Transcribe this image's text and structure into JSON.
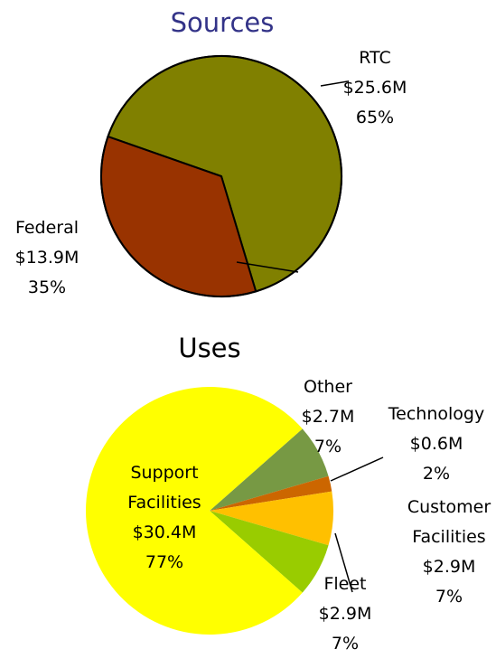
{
  "chart_data": [
    {
      "type": "pie",
      "title": "Sources",
      "categories": [
        "RTC",
        "Federal"
      ],
      "amounts": [
        25.6,
        13.9
      ],
      "amount_labels": [
        "$25.6M",
        "$13.9M"
      ],
      "values": [
        65,
        35
      ],
      "value_labels": [
        "65%",
        "35%"
      ],
      "colors": [
        "#808000",
        "#993300"
      ],
      "title_color": "#333388"
    },
    {
      "type": "pie",
      "title": "Uses",
      "categories": [
        "Other",
        "Technology",
        "Customer Facilities",
        "Fleet",
        "Support Facilities"
      ],
      "amounts": [
        2.7,
        0.6,
        2.9,
        2.9,
        30.4
      ],
      "amount_labels": [
        "$2.7M",
        "$0.6M",
        "$2.9M",
        "$2.9M",
        "$30.4M"
      ],
      "values": [
        7,
        2,
        7,
        7,
        77
      ],
      "value_labels": [
        "7%",
        "2%",
        "7%",
        "7%",
        "77%"
      ],
      "colors": [
        "#779944",
        "#cc6600",
        "#ffc000",
        "#99cc00",
        "#ffff00"
      ],
      "title_color": "#000000"
    }
  ]
}
